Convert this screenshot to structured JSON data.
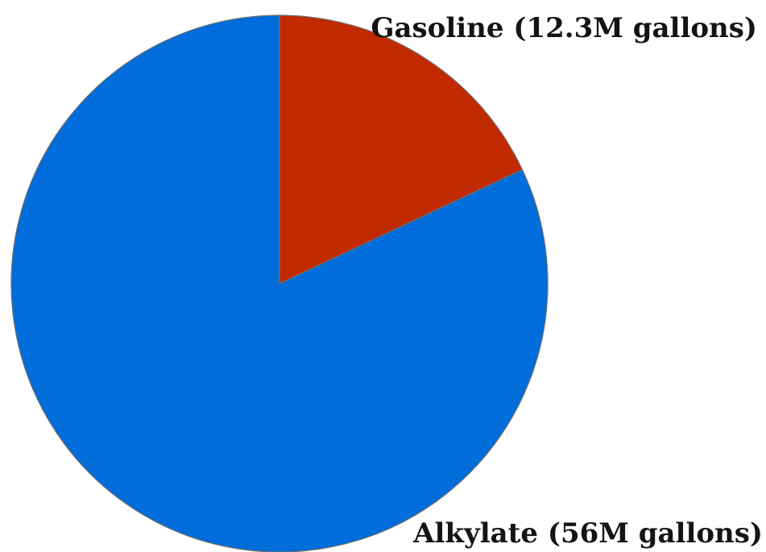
{
  "chart_data": {
    "type": "pie",
    "title": "",
    "slices": [
      {
        "name": "Gasoline",
        "value": 12.3,
        "label": "Gasoline (12.3M gallons)",
        "color": "#c12a00"
      },
      {
        "name": "Alkylate",
        "value": 56,
        "label": "Alkylate (56M gallons)",
        "color": "#006ddb"
      }
    ],
    "start_angle": "12 o'clock",
    "direction": "clockwise",
    "legend": "none"
  }
}
